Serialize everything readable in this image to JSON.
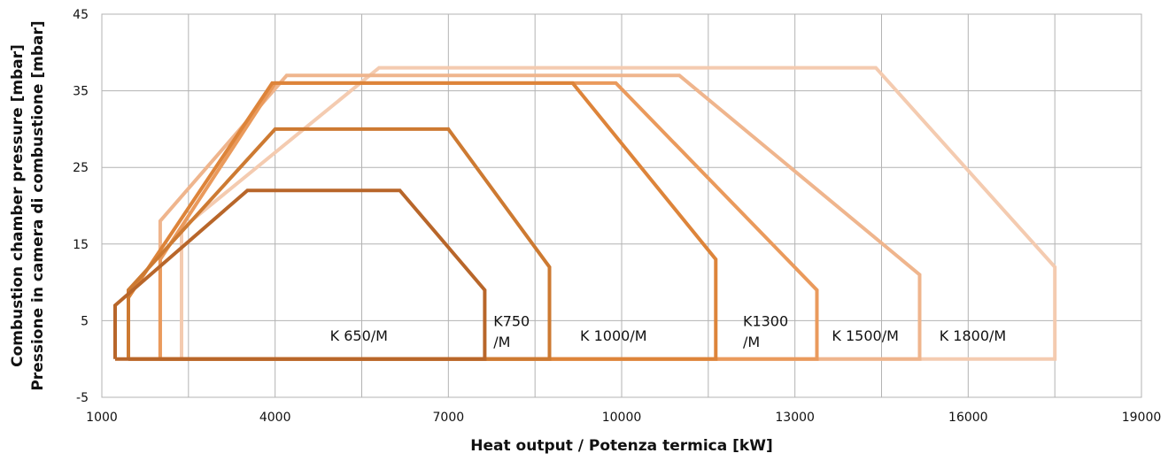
{
  "chart_data": {
    "type": "line",
    "xlabel": "Heat output / Potenza termica [kW]",
    "ylabel_line1": "Combustion chamber pressure [mbar]",
    "ylabel_line2": "Pressione in camera di combustione [mbar]",
    "xlim": [
      1000,
      19000
    ],
    "ylim": [
      -5,
      45
    ],
    "x_tick_labels": [
      "1000",
      "4000",
      "7000",
      "10000",
      "13000",
      "16000",
      "19000"
    ],
    "y_tick_labels": [
      "45",
      "35",
      "25",
      "15",
      "5",
      "-5"
    ],
    "grid": true,
    "series": [
      {
        "name": "K 650/M",
        "color": "#b8662a",
        "points": [
          [
            1230,
            0
          ],
          [
            1230,
            7
          ],
          [
            3520,
            22
          ],
          [
            6160,
            22
          ],
          [
            7630,
            9
          ],
          [
            7630,
            0
          ],
          [
            1230,
            0
          ]
        ]
      },
      {
        "name": "K750 /M",
        "color": "#cd7a32",
        "points": [
          [
            1460,
            0
          ],
          [
            1460,
            9
          ],
          [
            4000,
            30
          ],
          [
            7000,
            30
          ],
          [
            8750,
            12
          ],
          [
            8750,
            0
          ],
          [
            1460,
            0
          ]
        ]
      },
      {
        "name": "K 1000/M",
        "color": "#dd843a",
        "points": [
          [
            1460,
            0
          ],
          [
            1460,
            8
          ],
          [
            3950,
            36
          ],
          [
            9150,
            36
          ],
          [
            11630,
            13
          ],
          [
            11630,
            0
          ],
          [
            1460,
            0
          ]
        ]
      },
      {
        "name": "K1300 /M",
        "color": "#ea9a5c",
        "points": [
          [
            2010,
            0
          ],
          [
            2010,
            13
          ],
          [
            4000,
            36
          ],
          [
            9900,
            36
          ],
          [
            13380,
            9
          ],
          [
            13380,
            0
          ],
          [
            2010,
            0
          ]
        ]
      },
      {
        "name": "K 1500/M",
        "color": "#efb58d",
        "points": [
          [
            2010,
            0
          ],
          [
            2010,
            18
          ],
          [
            4200,
            37
          ],
          [
            11000,
            37
          ],
          [
            15160,
            11
          ],
          [
            15160,
            0
          ],
          [
            2010,
            0
          ]
        ]
      },
      {
        "name": "K 1800/M",
        "color": "#f4cbb0",
        "points": [
          [
            2380,
            0
          ],
          [
            2380,
            17
          ],
          [
            5800,
            38
          ],
          [
            14400,
            38
          ],
          [
            17500,
            12
          ],
          [
            17500,
            0
          ],
          [
            2380,
            0
          ]
        ]
      }
    ],
    "labels": [
      {
        "text": "K 650/M",
        "x": 4950,
        "y": 2.4
      },
      {
        "text": "K750",
        "x": 7780,
        "y": 4.3
      },
      {
        "text": "/M",
        "x": 7780,
        "y": 1.6
      },
      {
        "text": "K 1000/M",
        "x": 9280,
        "y": 2.4
      },
      {
        "text": "K1300",
        "x": 12100,
        "y": 4.3
      },
      {
        "text": "/M",
        "x": 12100,
        "y": 1.6
      },
      {
        "text": "K 1500/M",
        "x": 13640,
        "y": 2.4
      },
      {
        "text": "K 1800/M",
        "x": 15500,
        "y": 2.4
      }
    ]
  }
}
